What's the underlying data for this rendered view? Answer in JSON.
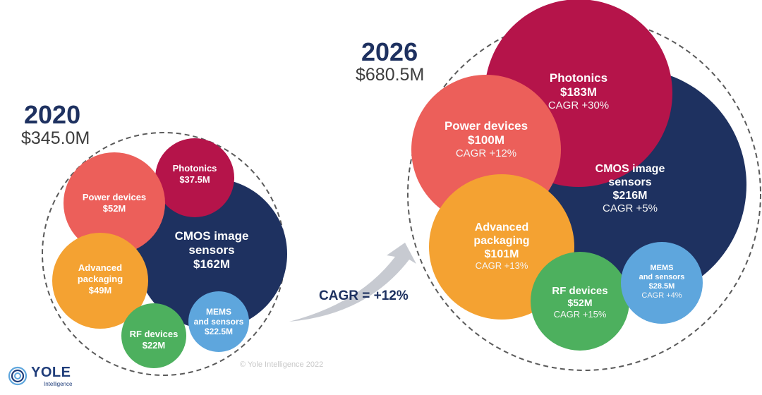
{
  "chart_data": {
    "type": "bubble",
    "comparison_label": "CAGR = +12%",
    "panels": [
      {
        "year": "2020",
        "total": "$345.0M",
        "total_value": 345.0,
        "segments": [
          {
            "id": "cmos",
            "name": "CMOS image sensors",
            "value": 162,
            "value_label": "$162M",
            "cagr": "",
            "color": "#1e3160"
          },
          {
            "id": "photonics",
            "name": "Photonics",
            "value": 37.5,
            "value_label": "$37.5M",
            "cagr": "",
            "color": "#b5144a"
          },
          {
            "id": "power",
            "name": "Power devices",
            "value": 52,
            "value_label": "$52M",
            "cagr": "",
            "color": "#ec5f5a"
          },
          {
            "id": "packaging",
            "name": "Advanced packaging",
            "value": 49,
            "value_label": "$49M",
            "cagr": "",
            "color": "#f4a232"
          },
          {
            "id": "rf",
            "name": "RF devices",
            "value": 22,
            "value_label": "$22M",
            "cagr": "",
            "color": "#4db05e"
          },
          {
            "id": "mems",
            "name": "MEMS and sensors",
            "value": 22.5,
            "value_label": "$22.5M",
            "cagr": "",
            "color": "#5ea6dd"
          }
        ]
      },
      {
        "year": "2026",
        "total": "$680.5M",
        "total_value": 680.5,
        "segments": [
          {
            "id": "cmos",
            "name": "CMOS image sensors",
            "value": 216,
            "value_label": "$216M",
            "cagr": "CAGR  +5%",
            "color": "#1e3160"
          },
          {
            "id": "photonics",
            "name": "Photonics",
            "value": 183,
            "value_label": "$183M",
            "cagr": "CAGR +30%",
            "color": "#b5144a"
          },
          {
            "id": "power",
            "name": "Power devices",
            "value": 100,
            "value_label": "$100M",
            "cagr": "CAGR +12%",
            "color": "#ec5f5a"
          },
          {
            "id": "packaging",
            "name": "Advanced packaging",
            "value": 101,
            "value_label": "$101M",
            "cagr": "CAGR +13%",
            "color": "#f4a232"
          },
          {
            "id": "rf",
            "name": "RF devices",
            "value": 52,
            "value_label": "$52M",
            "cagr": "CAGR +15%",
            "color": "#4db05e"
          },
          {
            "id": "mems",
            "name": "MEMS and sensors",
            "value": 28.5,
            "value_label": "$28.5M",
            "cagr": "CAGR +4%",
            "color": "#5ea6dd"
          }
        ]
      }
    ]
  },
  "footer": {
    "copyright": "© Yole Intelligence 2022",
    "logo_text": "YOLE",
    "logo_subtext": "Intelligence",
    "logo_icon": "yole-spiral-icon"
  }
}
